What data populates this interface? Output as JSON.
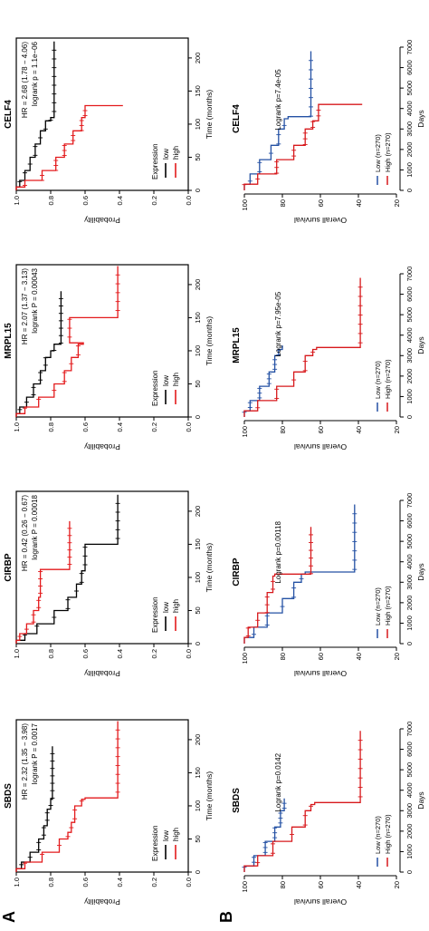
{
  "panel_labels": {
    "a": "A",
    "b": "B"
  },
  "colors": {
    "low": "#000000",
    "high": "#e31a1c",
    "low_b": "#2451a4",
    "high_b": "#d7191c"
  },
  "chart_data": [
    {
      "type": "line",
      "panel": "A",
      "gene": "SBDS",
      "xlabel": "Time (months)",
      "ylabel": "Probability",
      "xlim": [
        0,
        230
      ],
      "ylim": [
        0,
        1.0
      ],
      "xticks": [
        "0",
        "50",
        "100",
        "150",
        "200"
      ],
      "yticks": [
        "0.0",
        "0.2",
        "0.4",
        "0.6",
        "0.8",
        "1.0"
      ],
      "legend_title": "Expression",
      "hr_text": "HR = 2.32 (1.35 − 3.98)",
      "p_text": "logrank P = 0.0017",
      "series": [
        {
          "name": "low",
          "color": "#000000",
          "x": [
            0,
            5,
            15,
            30,
            50,
            70,
            95,
            110,
            190
          ],
          "y": [
            1.0,
            0.97,
            0.92,
            0.87,
            0.84,
            0.82,
            0.8,
            0.79,
            0.79
          ]
        },
        {
          "name": "high",
          "color": "#e31a1c",
          "x": [
            0,
            5,
            15,
            30,
            50,
            60,
            75,
            100,
            110,
            112,
            228
          ],
          "y": [
            1.0,
            0.95,
            0.85,
            0.75,
            0.7,
            0.68,
            0.66,
            0.62,
            0.6,
            0.41,
            0.41
          ]
        }
      ]
    },
    {
      "type": "line",
      "panel": "A",
      "gene": "CIRBP",
      "xlabel": "Time (months)",
      "ylabel": "Probability",
      "xlim": [
        0,
        230
      ],
      "ylim": [
        0,
        1.0
      ],
      "xticks": [
        "0",
        "50",
        "100",
        "150",
        "200"
      ],
      "yticks": [
        "0.0",
        "0.2",
        "0.4",
        "0.6",
        "0.8",
        "1.0"
      ],
      "legend_title": "Expression",
      "hr_text": "HR = 0.42 (0.26 − 0.67)",
      "p_text": "logrank P = 0.00018",
      "series": [
        {
          "name": "low",
          "color": "#000000",
          "x": [
            0,
            5,
            15,
            30,
            50,
            70,
            90,
            110,
            150,
            225
          ],
          "y": [
            1.0,
            0.95,
            0.88,
            0.78,
            0.7,
            0.65,
            0.62,
            0.6,
            0.41,
            0.41
          ]
        },
        {
          "name": "high",
          "color": "#e31a1c",
          "x": [
            0,
            5,
            15,
            30,
            50,
            70,
            110,
            112,
            185
          ],
          "y": [
            1.0,
            0.98,
            0.94,
            0.9,
            0.87,
            0.86,
            0.86,
            0.69,
            0.69
          ]
        }
      ]
    },
    {
      "type": "line",
      "panel": "A",
      "gene": "MRPL15",
      "xlabel": "Time (months)",
      "ylabel": "Probability",
      "xlim": [
        0,
        230
      ],
      "ylim": [
        0,
        1.0
      ],
      "xticks": [
        "0",
        "50",
        "100",
        "150",
        "200"
      ],
      "yticks": [
        "0.0",
        "0.2",
        "0.4",
        "0.6",
        "0.8",
        "1.0"
      ],
      "legend_title": "Expression",
      "hr_text": "HR = 2.07 (1.37 − 3.13)",
      "p_text": "logrank P = 0.00043",
      "series": [
        {
          "name": "low",
          "color": "#000000",
          "x": [
            0,
            5,
            15,
            30,
            50,
            70,
            90,
            100,
            110,
            190
          ],
          "y": [
            1.0,
            0.98,
            0.94,
            0.9,
            0.86,
            0.83,
            0.8,
            0.78,
            0.74,
            0.74
          ]
        },
        {
          "name": "high",
          "color": "#e31a1c",
          "x": [
            0,
            5,
            15,
            30,
            50,
            70,
            90,
            110,
            112,
            140,
            150,
            228
          ],
          "y": [
            1.0,
            0.95,
            0.87,
            0.78,
            0.72,
            0.68,
            0.64,
            0.61,
            0.69,
            0.69,
            0.41,
            0.41
          ]
        }
      ]
    },
    {
      "type": "line",
      "panel": "A",
      "gene": "CELF4",
      "xlabel": "Time (months)",
      "ylabel": "Probability",
      "xlim": [
        0,
        230
      ],
      "ylim": [
        0,
        1.0
      ],
      "xticks": [
        "0",
        "50",
        "100",
        "150",
        "200"
      ],
      "yticks": [
        "0.0",
        "0.2",
        "0.4",
        "0.6",
        "0.8",
        "1.0"
      ],
      "legend_title": "Expression",
      "hr_text": "HR = 2.68 (1.78 − 4.06)",
      "p_text": "logrank p = 1.1e−06",
      "series": [
        {
          "name": "low",
          "color": "#000000",
          "x": [
            0,
            5,
            15,
            30,
            50,
            70,
            90,
            105,
            110,
            225
          ],
          "y": [
            1.0,
            0.98,
            0.95,
            0.92,
            0.89,
            0.86,
            0.83,
            0.8,
            0.78,
            0.78
          ]
        },
        {
          "name": "high",
          "color": "#e31a1c",
          "x": [
            0,
            5,
            15,
            30,
            50,
            70,
            90,
            110,
            120,
            128
          ],
          "y": [
            1.0,
            0.95,
            0.85,
            0.77,
            0.72,
            0.67,
            0.62,
            0.6,
            0.6,
            0.38
          ]
        }
      ]
    },
    {
      "type": "line",
      "panel": "B",
      "gene": "SBDS",
      "xlabel": "Days",
      "ylabel": "Overall survival",
      "xlim": [
        0,
        7000
      ],
      "ylim": [
        20,
        100
      ],
      "xticks": [
        "0",
        "1000",
        "2000",
        "3000",
        "4000",
        "5000",
        "6000",
        "7000"
      ],
      "yticks": [
        "20",
        "40",
        "60",
        "80",
        "100"
      ],
      "pvalue_text": "Logrank p=0.0142",
      "series": [
        {
          "name": "Low (n=270)",
          "color": "#2451a4",
          "x": [
            0,
            300,
            800,
            1500,
            2200,
            3000,
            3600
          ],
          "y": [
            100,
            95,
            89,
            84,
            81,
            79,
            79
          ]
        },
        {
          "name": "High (n=270)",
          "color": "#d7191c",
          "x": [
            0,
            300,
            800,
            1500,
            2200,
            3000,
            3300,
            3400,
            6900
          ],
          "y": [
            100,
            93,
            85,
            75,
            68,
            65,
            63,
            39,
            39
          ]
        }
      ]
    },
    {
      "type": "line",
      "panel": "B",
      "gene": "CIRBP",
      "xlabel": "Days",
      "ylabel": "Overall survival",
      "xlim": [
        0,
        7000
      ],
      "ylim": [
        20,
        100
      ],
      "xticks": [
        "0",
        "1000",
        "2000",
        "3000",
        "4000",
        "5000",
        "6000",
        "7000"
      ],
      "yticks": [
        "20",
        "40",
        "60",
        "80",
        "100"
      ],
      "pvalue_text": "Logrank p=0.00118",
      "series": [
        {
          "name": "Low (n=270)",
          "color": "#2451a4",
          "x": [
            0,
            300,
            800,
            1500,
            2200,
            3000,
            3400,
            3500,
            6800
          ],
          "y": [
            100,
            95,
            88,
            80,
            74,
            70,
            68,
            42,
            42
          ]
        },
        {
          "name": "High (n=270)",
          "color": "#d7191c",
          "x": [
            0,
            300,
            800,
            1500,
            2500,
            3300,
            3400,
            5700
          ],
          "y": [
            100,
            98,
            93,
            88,
            85,
            84,
            65,
            65
          ]
        }
      ]
    },
    {
      "type": "line",
      "panel": "B",
      "gene": "MRPL15",
      "xlabel": "Days",
      "ylabel": "Overall survival",
      "xlim": [
        0,
        7000
      ],
      "ylim": [
        20,
        100
      ],
      "xticks": [
        "0",
        "1000",
        "2000",
        "3000",
        "4000",
        "5000",
        "6000",
        "7000"
      ],
      "yticks": [
        "20",
        "40",
        "60",
        "80",
        "100"
      ],
      "pvalue_text": "Logrank p=7.95e-05",
      "series": [
        {
          "name": "Low (n=270)",
          "color": "#2451a4",
          "x": [
            0,
            300,
            800,
            1500,
            2200,
            3000,
            3300,
            3500
          ],
          "y": [
            100,
            97,
            92,
            87,
            84,
            82,
            80,
            80
          ]
        },
        {
          "name": "High (n=270)",
          "color": "#d7191c",
          "x": [
            0,
            300,
            800,
            1500,
            2200,
            3000,
            3300,
            3400,
            6800
          ],
          "y": [
            100,
            93,
            83,
            74,
            68,
            64,
            62,
            39,
            39
          ]
        }
      ]
    },
    {
      "type": "line",
      "panel": "B",
      "gene": "CELF4",
      "xlabel": "Days",
      "ylabel": "Overall survival",
      "xlim": [
        0,
        7000
      ],
      "ylim": [
        20,
        100
      ],
      "xticks": [
        "0",
        "1000",
        "2000",
        "3000",
        "4000",
        "5000",
        "6000",
        "7000"
      ],
      "yticks": [
        "20",
        "40",
        "60",
        "80",
        "100"
      ],
      "pvalue_text": "Logrank p=7.4e-05",
      "series": [
        {
          "name": "Low (n=270)",
          "color": "#2451a4",
          "x": [
            0,
            300,
            800,
            1500,
            2200,
            3000,
            3500,
            3600,
            6800
          ],
          "y": [
            100,
            97,
            92,
            86,
            82,
            79,
            77,
            65,
            65
          ]
        },
        {
          "name": "High (n=270)",
          "color": "#d7191c",
          "x": [
            0,
            300,
            800,
            1500,
            2200,
            3000,
            3400,
            4200
          ],
          "y": [
            100,
            93,
            83,
            74,
            68,
            64,
            61,
            38
          ]
        }
      ]
    }
  ]
}
